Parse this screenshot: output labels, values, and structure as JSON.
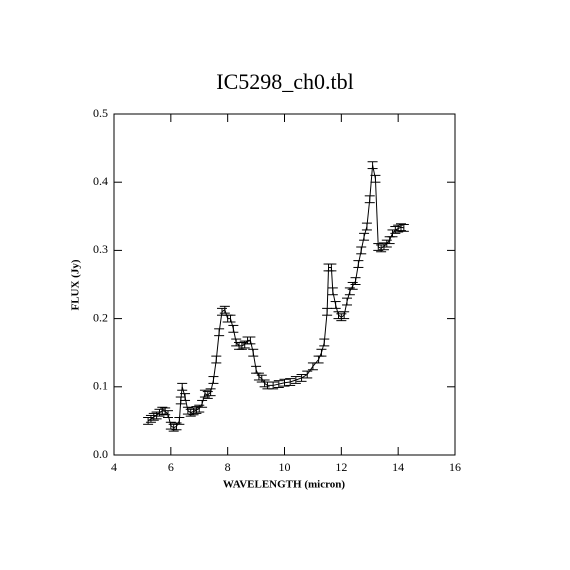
{
  "chart_data": {
    "type": "line",
    "title": "IC5298_ch0.tbl",
    "x_label": "WAVELENGTH (micron)",
    "y_label": "FLUX (Jy)",
    "x": [
      5.2,
      5.3,
      5.4,
      5.5,
      5.6,
      5.7,
      5.8,
      5.9,
      6.0,
      6.1,
      6.2,
      6.3,
      6.35,
      6.4,
      6.5,
      6.6,
      6.7,
      6.8,
      6.9,
      7.0,
      7.1,
      7.2,
      7.3,
      7.4,
      7.5,
      7.6,
      7.7,
      7.8,
      7.9,
      8.0,
      8.1,
      8.2,
      8.3,
      8.4,
      8.5,
      8.6,
      8.7,
      8.8,
      8.9,
      9.0,
      9.1,
      9.2,
      9.3,
      9.4,
      9.6,
      9.8,
      10.0,
      10.2,
      10.4,
      10.6,
      10.8,
      11.0,
      11.2,
      11.3,
      11.4,
      11.5,
      11.55,
      11.65,
      11.7,
      11.8,
      11.9,
      12.0,
      12.1,
      12.2,
      12.3,
      12.4,
      12.5,
      12.6,
      12.7,
      12.8,
      12.9,
      13.0,
      13.1,
      13.2,
      13.3,
      13.4,
      13.5,
      13.6,
      13.7,
      13.8,
      13.9,
      14.0,
      14.1,
      14.2
    ],
    "series": [
      {
        "color": "#000000",
        "values": [
          0.05,
          0.053,
          0.056,
          0.058,
          0.062,
          0.065,
          0.064,
          0.06,
          0.043,
          0.04,
          0.042,
          0.05,
          0.08,
          0.1,
          0.085,
          0.065,
          0.062,
          0.064,
          0.066,
          0.068,
          0.075,
          0.09,
          0.088,
          0.092,
          0.11,
          0.14,
          0.18,
          0.21,
          0.213,
          0.2,
          0.2,
          0.185,
          0.165,
          0.16,
          0.16,
          0.162,
          0.168,
          0.168,
          0.15,
          0.125,
          0.115,
          0.112,
          0.105,
          0.102,
          0.102,
          0.104,
          0.106,
          0.107,
          0.11,
          0.113,
          0.118,
          0.13,
          0.14,
          0.15,
          0.165,
          0.21,
          0.275,
          0.275,
          0.24,
          0.22,
          0.205,
          0.202,
          0.205,
          0.225,
          0.24,
          0.248,
          0.255,
          0.28,
          0.3,
          0.32,
          0.335,
          0.375,
          0.425,
          0.405,
          0.305,
          0.303,
          0.306,
          0.31,
          0.315,
          0.325,
          0.33,
          0.332,
          0.334,
          0.333
        ]
      }
    ],
    "yerr": 0.005,
    "xlim": [
      4,
      16
    ],
    "xticks": [
      4,
      6,
      8,
      10,
      12,
      14,
      16
    ],
    "ylim": [
      0,
      0.5
    ],
    "yticks": [
      {
        "value": 0,
        "label": "0.0"
      },
      0.1,
      0.2,
      0.3,
      0.4,
      0.5
    ]
  }
}
